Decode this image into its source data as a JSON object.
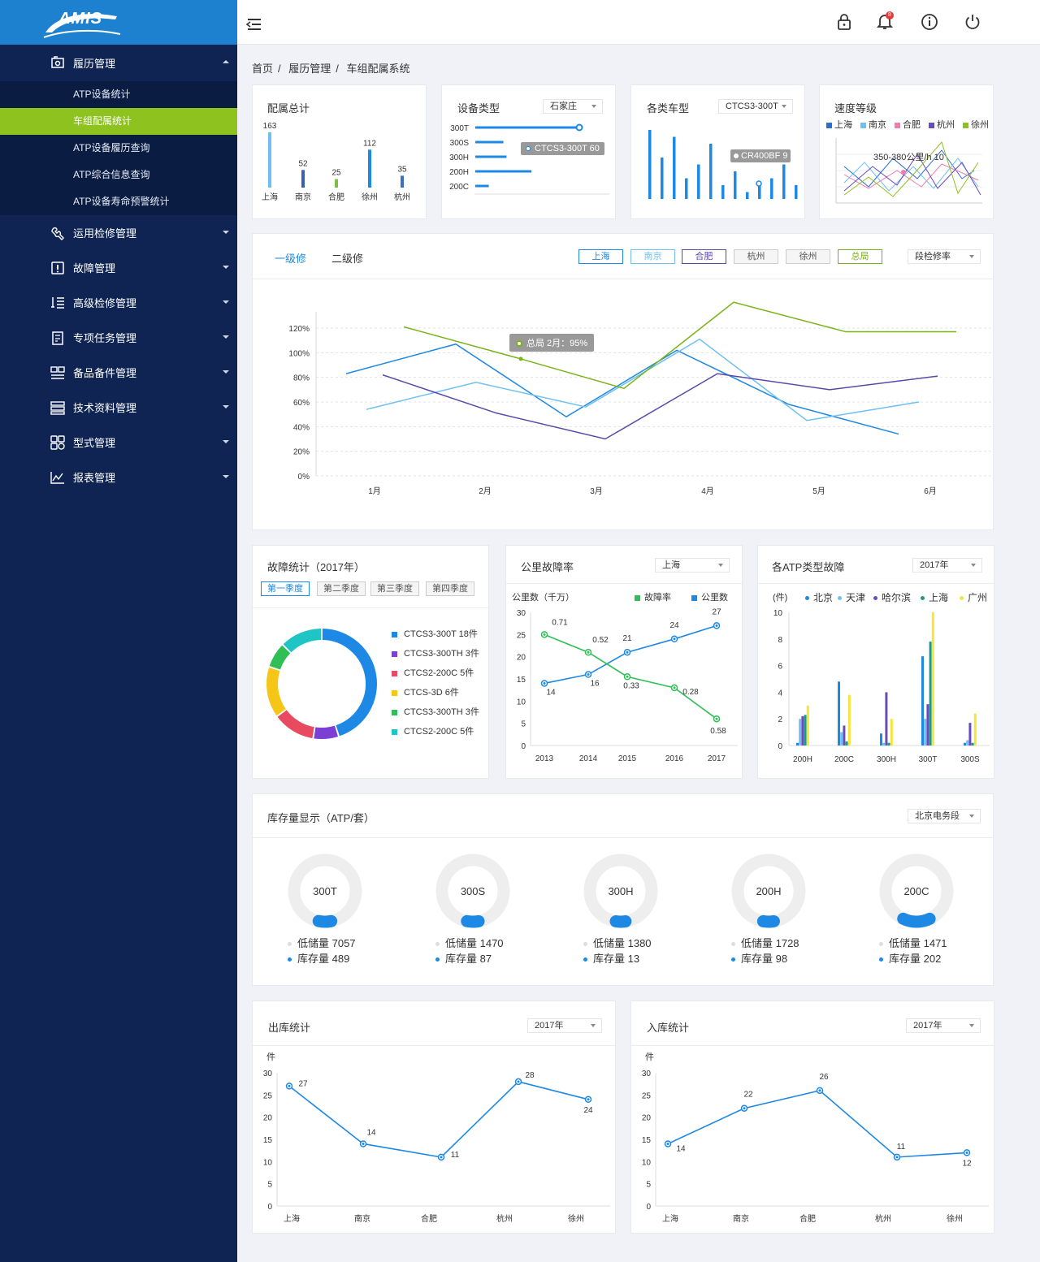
{
  "app": {
    "logo_text": "AMIS"
  },
  "sidebar": {
    "groups": [
      {
        "label": "履历管理",
        "icon": "camera-box-icon",
        "expanded": true,
        "items": [
          {
            "label": "ATP设备统计"
          },
          {
            "label": "车组配属统计",
            "active": true
          },
          {
            "label": "ATP设备履历查询"
          },
          {
            "label": "ATP综合信息查询"
          },
          {
            "label": "ATP设备寿命预警统计"
          }
        ]
      },
      {
        "label": "运用检修管理",
        "icon": "wrench-icon"
      },
      {
        "label": "故障管理",
        "icon": "alert-icon"
      },
      {
        "label": "高级检修管理",
        "icon": "list-tool-icon"
      },
      {
        "label": "专项任务管理",
        "icon": "document-icon"
      },
      {
        "label": "备品备件管理",
        "icon": "grid-icon"
      },
      {
        "label": "技术资料管理",
        "icon": "server-icon"
      },
      {
        "label": "型式管理",
        "icon": "apps-icon"
      },
      {
        "label": "报表管理",
        "icon": "line-chart-icon"
      }
    ]
  },
  "topbar": {
    "icons": [
      "menu-fold-icon",
      "lock-icon",
      "bell-icon",
      "info-icon",
      "power-icon"
    ],
    "bell_badge": "8"
  },
  "breadcrumb": [
    "首页",
    "履历管理",
    "车组配属系统"
  ],
  "colors": {
    "accent": "#1e88e5",
    "sidebar": "#0f2452",
    "active": "#8dc21f"
  },
  "card_allocation": {
    "title": "配属总计",
    "chart_data": {
      "type": "bar",
      "categories": [
        "上海",
        "南京",
        "合肥",
        "徐州",
        "杭州"
      ],
      "values": [
        163,
        52,
        25,
        112,
        35
      ],
      "colors": [
        "#6fc0f0",
        "#3a5fb8",
        "#7bc043",
        "#1e88e5",
        "#3a6fc8"
      ]
    }
  },
  "card_device": {
    "title": "设备类型",
    "dropdown": "石家庄",
    "tooltip": "CTCS3-300T  60",
    "chart_data": {
      "type": "bar",
      "orientation": "horizontal",
      "categories": [
        "300T",
        "300S",
        "300H",
        "200H",
        "200C"
      ],
      "values": [
        100,
        27,
        30,
        54,
        13
      ]
    }
  },
  "card_vehicle": {
    "title": "各类车型",
    "dropdown": "CTCS3-300T",
    "tooltip": "CR400BF 9",
    "chart_data": {
      "type": "bar",
      "values": [
        10,
        6,
        9,
        3,
        5,
        8,
        2,
        4,
        1,
        2,
        3,
        5,
        2
      ]
    }
  },
  "card_speed": {
    "title": "速度等级",
    "tooltip": "350-380公里/h   10",
    "legend": [
      {
        "name": "上海",
        "color": "#2c6fcf"
      },
      {
        "name": "南京",
        "color": "#6fc0f0"
      },
      {
        "name": "合肥",
        "color": "#f07cb0"
      },
      {
        "name": "杭州",
        "color": "#6a4bbf"
      },
      {
        "name": "徐州",
        "color": "#8dc21f"
      }
    ]
  },
  "repair": {
    "tabs": [
      "一级修",
      "二级修"
    ],
    "filters": [
      {
        "label": "上海",
        "color": "#1e88e5"
      },
      {
        "label": "南京",
        "color": "#6fc0f0"
      },
      {
        "label": "合肥",
        "color": "#5a48a8"
      },
      {
        "label": "杭州",
        "color": "#999"
      },
      {
        "label": "徐州",
        "color": "#999"
      },
      {
        "label": "总局",
        "color": "#7ab317"
      }
    ],
    "dropdown": "段检修率",
    "tooltip": "总局 2月：95%",
    "chart_data": {
      "type": "line",
      "categories": [
        "1月",
        "2月",
        "3月",
        "4月",
        "5月",
        "6月"
      ],
      "yticks": [
        "120%",
        "100%",
        "80%",
        "60%",
        "40%",
        "20%",
        "0%"
      ],
      "ylim": [
        0,
        130
      ]
    }
  },
  "fault": {
    "title": "故障统计（2017年）",
    "quarters": [
      "第一季度",
      "第二季度",
      "第三季度",
      "第四季度"
    ],
    "chart_data": {
      "type": "pie",
      "items": [
        {
          "label": "CTCS3-300T  18件",
          "value": 18,
          "color": "#1e88e5"
        },
        {
          "label": "CTCS3-300TH  3件",
          "value": 3,
          "color": "#7b3fd4"
        },
        {
          "label": "CTCS2-200C  5件",
          "value": 5,
          "color": "#e84a5f"
        },
        {
          "label": "CTCS-3D  6件",
          "value": 6,
          "color": "#f5c518"
        },
        {
          "label": "CTCS3-300TH  3件",
          "value": 3,
          "color": "#2fbf56"
        },
        {
          "label": "CTCS2-200C  5件",
          "value": 5,
          "color": "#1fc4c4"
        }
      ]
    }
  },
  "km_fault": {
    "title": "公里故障率",
    "dropdown": "上海",
    "ylabel": "公里数（千万）",
    "legend": [
      {
        "name": "故障率",
        "color": "#2fbf56"
      },
      {
        "name": "公里数",
        "color": "#1e88e5"
      }
    ],
    "chart_data": {
      "type": "line",
      "categories": [
        "2013",
        "2014",
        "2015",
        "2016",
        "2017"
      ],
      "yticks": [
        "30",
        "25",
        "20",
        "15",
        "10",
        "5",
        "0"
      ],
      "series": [
        {
          "name": "公里数",
          "values": [
            14,
            16,
            21,
            24,
            27
          ],
          "labels": [
            "14",
            "16",
            "21",
            "24",
            "27"
          ]
        },
        {
          "name": "故障率",
          "values": [
            25,
            21,
            15.5,
            13,
            6
          ],
          "labels": [
            "0.71",
            "0.52",
            "0.33",
            "0.28",
            "0.58"
          ]
        }
      ]
    }
  },
  "atp_fault": {
    "title": "各ATP类型故障",
    "dropdown": "2017年",
    "ylabel": "(件)",
    "legend": [
      {
        "name": "北京",
        "color": "#1e88e5"
      },
      {
        "name": "天津",
        "color": "#6fc0f0"
      },
      {
        "name": "哈尔滨",
        "color": "#6a4bbf"
      },
      {
        "name": "上海",
        "color": "#1a9a8a"
      },
      {
        "name": "广州",
        "color": "#f5e43a"
      }
    ],
    "chart_data": {
      "type": "bar",
      "categories": [
        "200H",
        "200C",
        "300H",
        "300T",
        "300S"
      ],
      "yticks": [
        "10",
        "8",
        "6",
        "4",
        "2",
        "0"
      ],
      "series": [
        {
          "name": "北京",
          "values": [
            0.2,
            4.8,
            0.9,
            6.7,
            0.2
          ]
        },
        {
          "name": "天津",
          "values": [
            2,
            1,
            0.2,
            2,
            0.4
          ]
        },
        {
          "name": "哈尔滨",
          "values": [
            2.2,
            1.5,
            4,
            3.1,
            1.7
          ]
        },
        {
          "name": "上海",
          "values": [
            2.3,
            0.3,
            0.2,
            7.8,
            0.2
          ]
        },
        {
          "name": "广州",
          "values": [
            3,
            3.8,
            2,
            10,
            2.4
          ]
        }
      ]
    }
  },
  "stock": {
    "title": "库存量显示（ATP/套）",
    "dropdown": "北京电务段",
    "items": [
      {
        "name": "300T",
        "low_label": "低储量 7057",
        "stock_label": "库存量 489",
        "ratio": 0.065
      },
      {
        "name": "300S",
        "low_label": "低储量 1470",
        "stock_label": "库存量 87",
        "ratio": 0.06
      },
      {
        "name": "300H",
        "low_label": "低储量 1380",
        "stock_label": "库存量 13",
        "ratio": 0.05
      },
      {
        "name": "200H",
        "low_label": "低储量 1728",
        "stock_label": "库存量 98",
        "ratio": 0.055
      },
      {
        "name": "200C",
        "low_label": "低储量 1471",
        "stock_label": "库存量 202",
        "ratio": 0.14
      }
    ]
  },
  "outbound": {
    "title": "出库统计",
    "dropdown": "2017年",
    "ylabel": "件",
    "chart_data": {
      "type": "line",
      "categories": [
        "上海",
        "南京",
        "合肥",
        "杭州",
        "徐州"
      ],
      "values": [
        27,
        14,
        11,
        28,
        24
      ],
      "yticks": [
        "30",
        "25",
        "20",
        "15",
        "10",
        "5",
        "0"
      ]
    }
  },
  "inbound": {
    "title": "入库统计",
    "dropdown": "2017年",
    "ylabel": "件",
    "chart_data": {
      "type": "line",
      "categories": [
        "上海",
        "南京",
        "合肥",
        "杭州",
        "徐州"
      ],
      "values": [
        14,
        22,
        26,
        11,
        12
      ],
      "yticks": [
        "30",
        "25",
        "20",
        "15",
        "10",
        "5",
        "0"
      ]
    }
  }
}
